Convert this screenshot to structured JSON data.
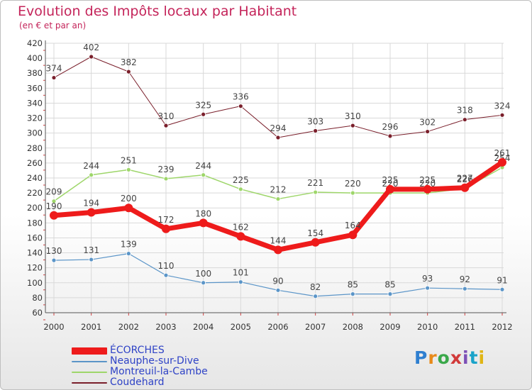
{
  "title": "Evolution des Impôts locaux par Habitant",
  "subtitle": "(en € et par an)",
  "logo": {
    "text": "Proxiti",
    "colors": [
      "#2f7fd0",
      "#e88a1a",
      "#3aa84a",
      "#d13a3a",
      "#7c4fb6",
      "#1aa3c9",
      "#e0b514"
    ]
  },
  "chart_data": {
    "type": "line",
    "title": "Evolution des Impôts locaux par Habitant",
    "subtitle": "(en € et par an)",
    "xlabel": "",
    "ylabel": "",
    "x": [
      "2000",
      "2001",
      "2002",
      "2003",
      "2004",
      "2005",
      "2006",
      "2007",
      "2008",
      "2009",
      "2010",
      "2011",
      "2012"
    ],
    "ylim": [
      60,
      420
    ],
    "yticks": [
      60,
      80,
      100,
      120,
      140,
      160,
      180,
      200,
      220,
      240,
      260,
      280,
      300,
      320,
      340,
      360,
      380,
      400,
      420
    ],
    "grid": true,
    "legend_position": "bottom-left",
    "series": [
      {
        "name": "Coudehard",
        "color": "#7a1f2b",
        "width": 1,
        "values": [
          374,
          402,
          382,
          310,
          325,
          336,
          294,
          303,
          310,
          296,
          302,
          318,
          324
        ],
        "labels": [
          "374",
          "402",
          "382",
          "310",
          "325",
          "336",
          "294",
          "303",
          "310",
          "296",
          "302",
          "318",
          "324"
        ]
      },
      {
        "name": "Montreuil-la-Cambe",
        "color": "#9ed66a",
        "width": 1.5,
        "values": [
          209,
          244,
          251,
          239,
          244,
          225,
          212,
          221,
          220,
          220,
          220,
          226,
          254
        ],
        "labels": [
          "209",
          "244",
          "251",
          "239",
          "244",
          "225",
          "212",
          "221",
          "220",
          "220",
          "220",
          "226",
          "254"
        ]
      },
      {
        "name": "Neauphe-sur-Dive",
        "color": "#5b95c8",
        "width": 1.2,
        "values": [
          130,
          131,
          139,
          110,
          100,
          101,
          90,
          82,
          85,
          85,
          93,
          92,
          91
        ],
        "labels": [
          "130",
          "131",
          "139",
          "110",
          "100",
          "101",
          "90",
          "82",
          "85",
          "85",
          "93",
          "92",
          "91"
        ]
      },
      {
        "name": "ÉCORCHES",
        "color": "#ee1b1b",
        "width": 7,
        "values": [
          190,
          194,
          200,
          172,
          180,
          162,
          144,
          154,
          164,
          225,
          225,
          227,
          261
        ],
        "labels": [
          "190",
          "194",
          "200",
          "172",
          "180",
          "162",
          "144",
          "154",
          "164",
          "225",
          "225",
          "227",
          "261"
        ]
      }
    ],
    "legend": [
      "ÉCORCHES",
      "Neauphe-sur-Dive",
      "Montreuil-la-Cambe",
      "Coudehard"
    ]
  }
}
